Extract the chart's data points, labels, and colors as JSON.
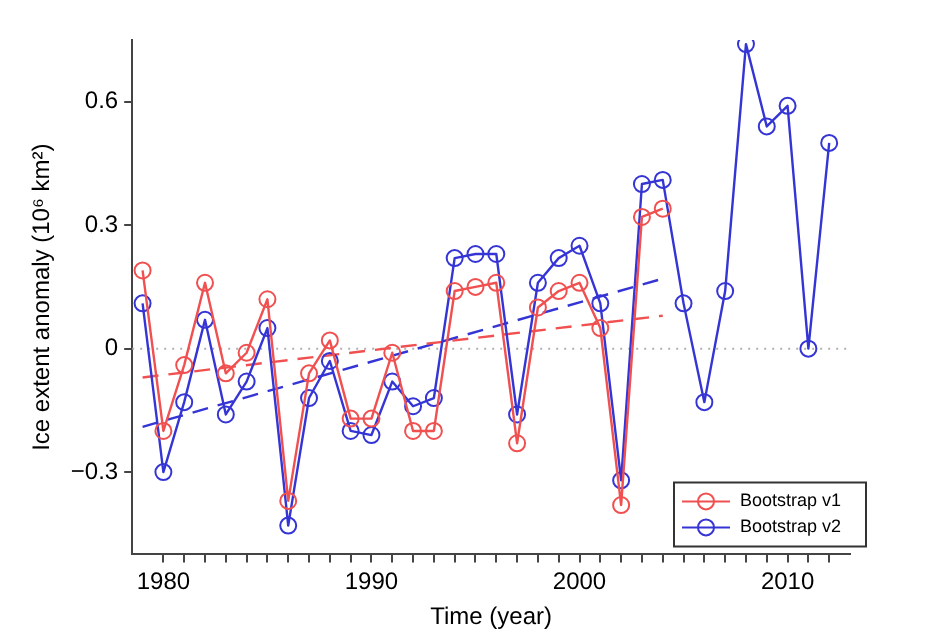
{
  "chart_data": {
    "type": "line",
    "xlabel": "Time (year)",
    "ylabel": "Ice extent anomaly (10⁶ km²)",
    "xlim": [
      1978.5,
      2013
    ],
    "ylim": [
      -0.5,
      0.75
    ],
    "xticks": [
      1980,
      {
        "value": 1981,
        "label": null
      },
      {
        "value": 1982,
        "label": null
      },
      {
        "value": 1983,
        "label": null
      },
      {
        "value": 1984,
        "label": null
      },
      {
        "value": 1985,
        "label": null
      },
      {
        "value": 1986,
        "label": null
      },
      {
        "value": 1987,
        "label": null
      },
      {
        "value": 1988,
        "label": null
      },
      {
        "value": 1989,
        "label": null
      },
      1990,
      {
        "value": 1991,
        "label": null
      },
      {
        "value": 1992,
        "label": null
      },
      {
        "value": 1993,
        "label": null
      },
      {
        "value": 1994,
        "label": null
      },
      {
        "value": 1995,
        "label": null
      },
      {
        "value": 1996,
        "label": null
      },
      {
        "value": 1997,
        "label": null
      },
      {
        "value": 1998,
        "label": null
      },
      {
        "value": 1999,
        "label": null
      },
      2000,
      {
        "value": 2001,
        "label": null
      },
      {
        "value": 2002,
        "label": null
      },
      {
        "value": 2003,
        "label": null
      },
      {
        "value": 2004,
        "label": null
      },
      {
        "value": 2005,
        "label": null
      },
      {
        "value": 2006,
        "label": null
      },
      {
        "value": 2007,
        "label": null
      },
      {
        "value": 2008,
        "label": null
      },
      {
        "value": 2009,
        "label": null
      },
      2010,
      {
        "value": 2011,
        "label": null
      },
      {
        "value": 2012,
        "label": null
      }
    ],
    "yticks": [
      -0.3,
      0,
      0.3,
      0.6
    ],
    "grid": false,
    "legend": "bottom right",
    "marker": "circle",
    "line_style": "solid",
    "ref_lines": [
      {
        "axis": "y",
        "value": 0,
        "color": "#b0b0b0",
        "line_style": "dotted"
      }
    ],
    "series": [
      {
        "name": "Bootstrap v1",
        "color": "#f05050",
        "x": [
          1979,
          1980,
          1981,
          1982,
          1983,
          1984,
          1985,
          1986,
          1987,
          1988,
          1989,
          1990,
          1991,
          1992,
          1993,
          1994,
          1995,
          1996,
          1997,
          1998,
          1999,
          2000,
          2001,
          2002,
          2003,
          2004
        ],
        "values": [
          0.19,
          -0.2,
          -0.04,
          0.16,
          -0.06,
          -0.01,
          0.12,
          -0.37,
          -0.06,
          0.02,
          -0.17,
          -0.17,
          -0.01,
          -0.2,
          -0.2,
          0.14,
          0.15,
          0.16,
          -0.23,
          0.1,
          0.14,
          0.16,
          0.05,
          -0.38,
          0.32,
          0.34
        ]
      },
      {
        "name": "Bootstrap v2",
        "color": "#3535d5",
        "x": [
          1979,
          1980,
          1981,
          1982,
          1983,
          1984,
          1985,
          1986,
          1987,
          1988,
          1989,
          1990,
          1991,
          1992,
          1993,
          1994,
          1995,
          1996,
          1997,
          1998,
          1999,
          2000,
          2001,
          2002,
          2003,
          2004,
          2005,
          2006,
          2007,
          2008,
          2009,
          2010,
          2011,
          2012
        ],
        "values": [
          0.11,
          -0.3,
          -0.13,
          0.07,
          -0.16,
          -0.08,
          0.05,
          -0.43,
          -0.12,
          -0.03,
          -0.2,
          -0.21,
          -0.08,
          -0.14,
          -0.12,
          0.22,
          0.23,
          0.23,
          -0.16,
          0.16,
          0.22,
          0.25,
          0.11,
          -0.32,
          0.4,
          0.41,
          0.11,
          -0.13,
          0.14,
          0.74,
          0.54,
          0.59,
          0,
          0.5
        ]
      },
      {
        "type": "line",
        "color": "#f05050",
        "line_style": "dashed",
        "marker": "none",
        "x": [
          1979,
          2004
        ],
        "values": [
          -0.07,
          0.08
        ]
      },
      {
        "type": "line",
        "color": "#3535d5",
        "line_style": "dashed",
        "marker": "none",
        "x": [
          1979,
          2004
        ],
        "values": [
          -0.19,
          0.17
        ]
      }
    ]
  }
}
